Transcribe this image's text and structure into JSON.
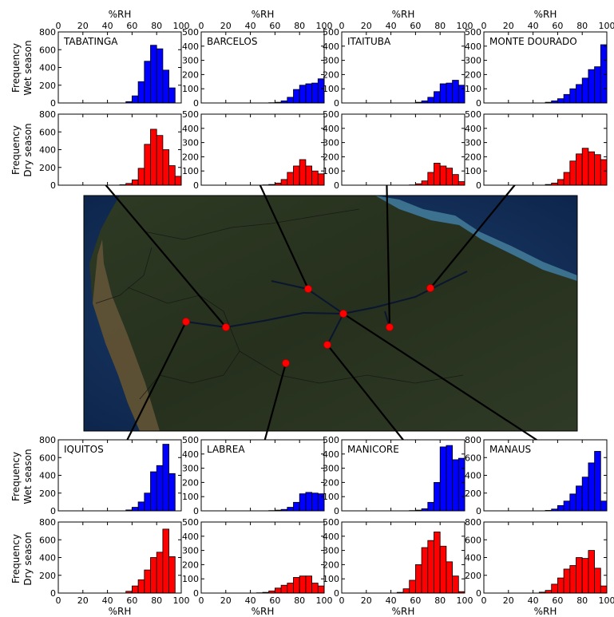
{
  "figure": {
    "x_axis_label": "%RH",
    "row_labels": {
      "wet": [
        "Frequency",
        "Wet season"
      ],
      "dry": [
        "Frequency",
        "Dry season"
      ]
    }
  },
  "colors": {
    "wet": "#0000ff",
    "dry": "#ff0000",
    "map_marker": "#ff0000"
  },
  "chart_data": [
    {
      "type": "bar",
      "station": "TABATINGA",
      "season": "Wet season",
      "color": "#0000ff",
      "xlabel": "%RH",
      "ylabel": "Frequency",
      "xlim": [
        0,
        100
      ],
      "ylim": [
        0,
        800
      ],
      "yticks": [
        0,
        200,
        400,
        600,
        800
      ],
      "bin_width": 5,
      "bin_starts": [
        55,
        60,
        65,
        70,
        75,
        80,
        85,
        90,
        95
      ],
      "values": [
        15,
        80,
        240,
        470,
        650,
        610,
        370,
        170,
        0
      ]
    },
    {
      "type": "bar",
      "station": "BARCELOS",
      "season": "Wet season",
      "color": "#0000ff",
      "xlabel": "%RH",
      "ylabel": "Frequency",
      "xlim": [
        0,
        100
      ],
      "ylim": [
        0,
        500
      ],
      "yticks": [
        0,
        100,
        200,
        300,
        400,
        500
      ],
      "bin_width": 5,
      "bin_starts": [
        55,
        60,
        65,
        70,
        75,
        80,
        85,
        90,
        95
      ],
      "values": [
        2,
        5,
        15,
        40,
        95,
        125,
        135,
        140,
        170
      ]
    },
    {
      "type": "bar",
      "station": "ITAITUBA",
      "season": "Wet season",
      "color": "#0000ff",
      "xlabel": "%RH",
      "ylabel": "Frequency",
      "xlim": [
        0,
        100
      ],
      "ylim": [
        0,
        500
      ],
      "yticks": [
        0,
        100,
        200,
        300,
        400,
        500
      ],
      "bin_width": 5,
      "bin_starts": [
        60,
        65,
        70,
        75,
        80,
        85,
        90,
        95
      ],
      "values": [
        5,
        15,
        40,
        80,
        135,
        140,
        160,
        125
      ]
    },
    {
      "type": "bar",
      "station": "MONTE DOURADO",
      "season": "Wet season",
      "color": "#0000ff",
      "xlabel": "%RH",
      "ylabel": "Frequency",
      "xlim": [
        0,
        100
      ],
      "ylim": [
        0,
        500
      ],
      "yticks": [
        0,
        100,
        200,
        300,
        400,
        500
      ],
      "bin_width": 5,
      "bin_starts": [
        50,
        55,
        60,
        65,
        70,
        75,
        80,
        85,
        90,
        95
      ],
      "values": [
        5,
        15,
        30,
        60,
        100,
        130,
        175,
        235,
        255,
        410
      ]
    },
    {
      "type": "bar",
      "station": "TABATINGA",
      "season": "Dry season",
      "color": "#ff0000",
      "xlabel": "%RH",
      "ylabel": "Frequency",
      "xlim": [
        0,
        100
      ],
      "ylim": [
        0,
        800
      ],
      "yticks": [
        0,
        200,
        400,
        600,
        800
      ],
      "bin_width": 5,
      "bin_starts": [
        50,
        55,
        60,
        65,
        70,
        75,
        80,
        85,
        90,
        95
      ],
      "values": [
        5,
        20,
        60,
        190,
        460,
        630,
        560,
        400,
        220,
        100
      ]
    },
    {
      "type": "bar",
      "station": "BARCELOS",
      "season": "Dry season",
      "color": "#ff0000",
      "xlabel": "%RH",
      "ylabel": "Frequency",
      "xlim": [
        0,
        100
      ],
      "ylim": [
        0,
        500
      ],
      "yticks": [
        0,
        100,
        200,
        300,
        400,
        500
      ],
      "bin_width": 5,
      "bin_starts": [
        50,
        55,
        60,
        65,
        70,
        75,
        80,
        85,
        90,
        95
      ],
      "values": [
        2,
        5,
        15,
        40,
        90,
        135,
        180,
        135,
        100,
        80
      ]
    },
    {
      "type": "bar",
      "station": "ITAITUBA",
      "season": "Dry season",
      "color": "#ff0000",
      "xlabel": "%RH",
      "ylabel": "Frequency",
      "xlim": [
        0,
        100
      ],
      "ylim": [
        0,
        500
      ],
      "yticks": [
        0,
        100,
        200,
        300,
        400,
        500
      ],
      "bin_width": 5,
      "bin_starts": [
        55,
        60,
        65,
        70,
        75,
        80,
        85,
        90,
        95
      ],
      "values": [
        2,
        10,
        30,
        90,
        155,
        135,
        120,
        75,
        25
      ]
    },
    {
      "type": "bar",
      "station": "MONTE DOURADO",
      "season": "Dry season",
      "color": "#ff0000",
      "xlabel": "%RH",
      "ylabel": "Frequency",
      "xlim": [
        0,
        100
      ],
      "ylim": [
        0,
        500
      ],
      "yticks": [
        0,
        100,
        200,
        300,
        400,
        500
      ],
      "bin_width": 5,
      "bin_starts": [
        50,
        55,
        60,
        65,
        70,
        75,
        80,
        85,
        90,
        95
      ],
      "values": [
        5,
        15,
        40,
        90,
        170,
        220,
        260,
        235,
        215,
        180
      ]
    },
    {
      "type": "bar",
      "station": "IQUITOS",
      "season": "Wet season",
      "color": "#0000ff",
      "xlabel": "%RH",
      "ylabel": "Frequency",
      "xlim": [
        0,
        100
      ],
      "ylim": [
        0,
        800
      ],
      "yticks": [
        0,
        200,
        400,
        600,
        800
      ],
      "bin_width": 5,
      "bin_starts": [
        55,
        60,
        65,
        70,
        75,
        80,
        85,
        90
      ],
      "values": [
        10,
        40,
        100,
        200,
        440,
        510,
        750,
        420
      ]
    },
    {
      "type": "bar",
      "station": "LABREA",
      "season": "Wet season",
      "color": "#0000ff",
      "xlabel": "%RH",
      "ylabel": "Frequency",
      "xlim": [
        0,
        100
      ],
      "ylim": [
        0,
        500
      ],
      "yticks": [
        0,
        100,
        200,
        300,
        400,
        500
      ],
      "bin_width": 5,
      "bin_starts": [
        55,
        60,
        65,
        70,
        75,
        80,
        85,
        90,
        95
      ],
      "values": [
        2,
        5,
        10,
        25,
        60,
        120,
        130,
        125,
        120
      ]
    },
    {
      "type": "bar",
      "station": "MANICORE",
      "season": "Wet season",
      "color": "#0000ff",
      "xlabel": "%RH",
      "ylabel": "Frequency",
      "xlim": [
        0,
        100
      ],
      "ylim": [
        0,
        500
      ],
      "yticks": [
        0,
        100,
        200,
        300,
        400,
        500
      ],
      "bin_width": 5,
      "bin_starts": [
        55,
        60,
        65,
        70,
        75,
        80,
        85,
        90,
        95
      ],
      "values": [
        2,
        5,
        15,
        60,
        200,
        450,
        460,
        360,
        370
      ]
    },
    {
      "type": "bar",
      "station": "MANAUS",
      "season": "Wet season",
      "color": "#0000ff",
      "xlabel": "%RH",
      "ylabel": "Frequency",
      "xlim": [
        0,
        100
      ],
      "ylim": [
        0,
        800
      ],
      "yticks": [
        0,
        200,
        400,
        600,
        800
      ],
      "bin_width": 5,
      "bin_starts": [
        50,
        55,
        60,
        65,
        70,
        75,
        80,
        85,
        90,
        95
      ],
      "values": [
        5,
        20,
        60,
        110,
        190,
        280,
        380,
        540,
        670,
        110
      ]
    },
    {
      "type": "bar",
      "station": "IQUITOS",
      "season": "Dry season",
      "color": "#ff0000",
      "xlabel": "%RH",
      "ylabel": "Frequency",
      "xlim": [
        0,
        100
      ],
      "ylim": [
        0,
        800
      ],
      "yticks": [
        0,
        200,
        400,
        600,
        800
      ],
      "bin_width": 5,
      "bin_starts": [
        55,
        60,
        65,
        70,
        75,
        80,
        85,
        90
      ],
      "values": [
        20,
        80,
        150,
        260,
        400,
        460,
        720,
        410
      ]
    },
    {
      "type": "bar",
      "station": "LABREA",
      "season": "Dry season",
      "color": "#ff0000",
      "xlabel": "%RH",
      "ylabel": "Frequency",
      "xlim": [
        0,
        100
      ],
      "ylim": [
        0,
        500
      ],
      "yticks": [
        0,
        100,
        200,
        300,
        400,
        500
      ],
      "bin_width": 5,
      "bin_starts": [
        45,
        50,
        55,
        60,
        65,
        70,
        75,
        80,
        85,
        90,
        95
      ],
      "values": [
        2,
        5,
        15,
        35,
        55,
        70,
        110,
        120,
        120,
        70,
        50
      ]
    },
    {
      "type": "bar",
      "station": "MANICORE",
      "season": "Dry season",
      "color": "#ff0000",
      "xlabel": "%RH",
      "ylabel": "Frequency",
      "xlim": [
        0,
        100
      ],
      "ylim": [
        0,
        500
      ],
      "yticks": [
        0,
        100,
        200,
        300,
        400,
        500
      ],
      "bin_width": 5,
      "bin_starts": [
        45,
        50,
        55,
        60,
        65,
        70,
        75,
        80,
        85,
        90,
        95
      ],
      "values": [
        5,
        30,
        90,
        200,
        320,
        370,
        430,
        330,
        220,
        120,
        10
      ]
    },
    {
      "type": "bar",
      "station": "MANAUS",
      "season": "Dry season",
      "color": "#ff0000",
      "xlabel": "%RH",
      "ylabel": "Frequency",
      "xlim": [
        0,
        100
      ],
      "ylim": [
        0,
        800
      ],
      "yticks": [
        0,
        200,
        400,
        600,
        800
      ],
      "bin_width": 5,
      "bin_starts": [
        45,
        50,
        55,
        60,
        65,
        70,
        75,
        80,
        85,
        90,
        95
      ],
      "values": [
        10,
        30,
        100,
        170,
        270,
        310,
        400,
        390,
        480,
        280,
        80
      ]
    }
  ]
}
